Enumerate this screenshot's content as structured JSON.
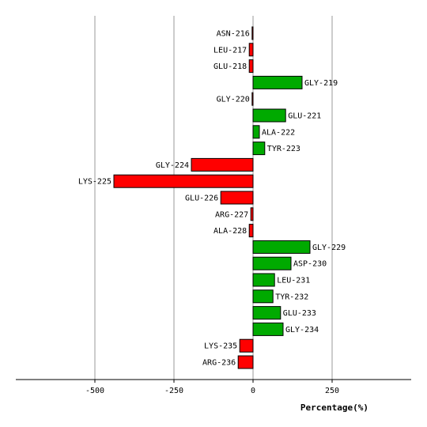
{
  "chart_data": {
    "type": "bar",
    "orientation": "horizontal",
    "xlabel": "Percentage(%)",
    "xlim": [
      -750,
      500
    ],
    "xticks": [
      -500,
      -250,
      0,
      250
    ],
    "xtick_labels": [
      "-500",
      "-250",
      "0",
      "250"
    ],
    "grid": true,
    "legend": "none",
    "colors": {
      "positive": "#00aa00",
      "negative": "#ff0000",
      "outline": "#000000",
      "grid": "#999999"
    },
    "categories": [
      "ASN-216",
      "LEU-217",
      "GLU-218",
      "GLY-219",
      "GLY-220",
      "GLU-221",
      "ALA-222",
      "TYR-223",
      "GLY-224",
      "LYS-225",
      "GLU-226",
      "ARG-227",
      "ALA-228",
      "GLY-229",
      "ASP-230",
      "LEU-231",
      "TYR-232",
      "GLU-233",
      "GLY-234",
      "LYS-235",
      "ARG-236"
    ],
    "values": [
      -3,
      -12,
      -12,
      155,
      -3,
      103,
      20,
      37,
      -195,
      -440,
      -102,
      -7,
      -12,
      180,
      120,
      68,
      63,
      87,
      95,
      -42,
      -47
    ]
  }
}
